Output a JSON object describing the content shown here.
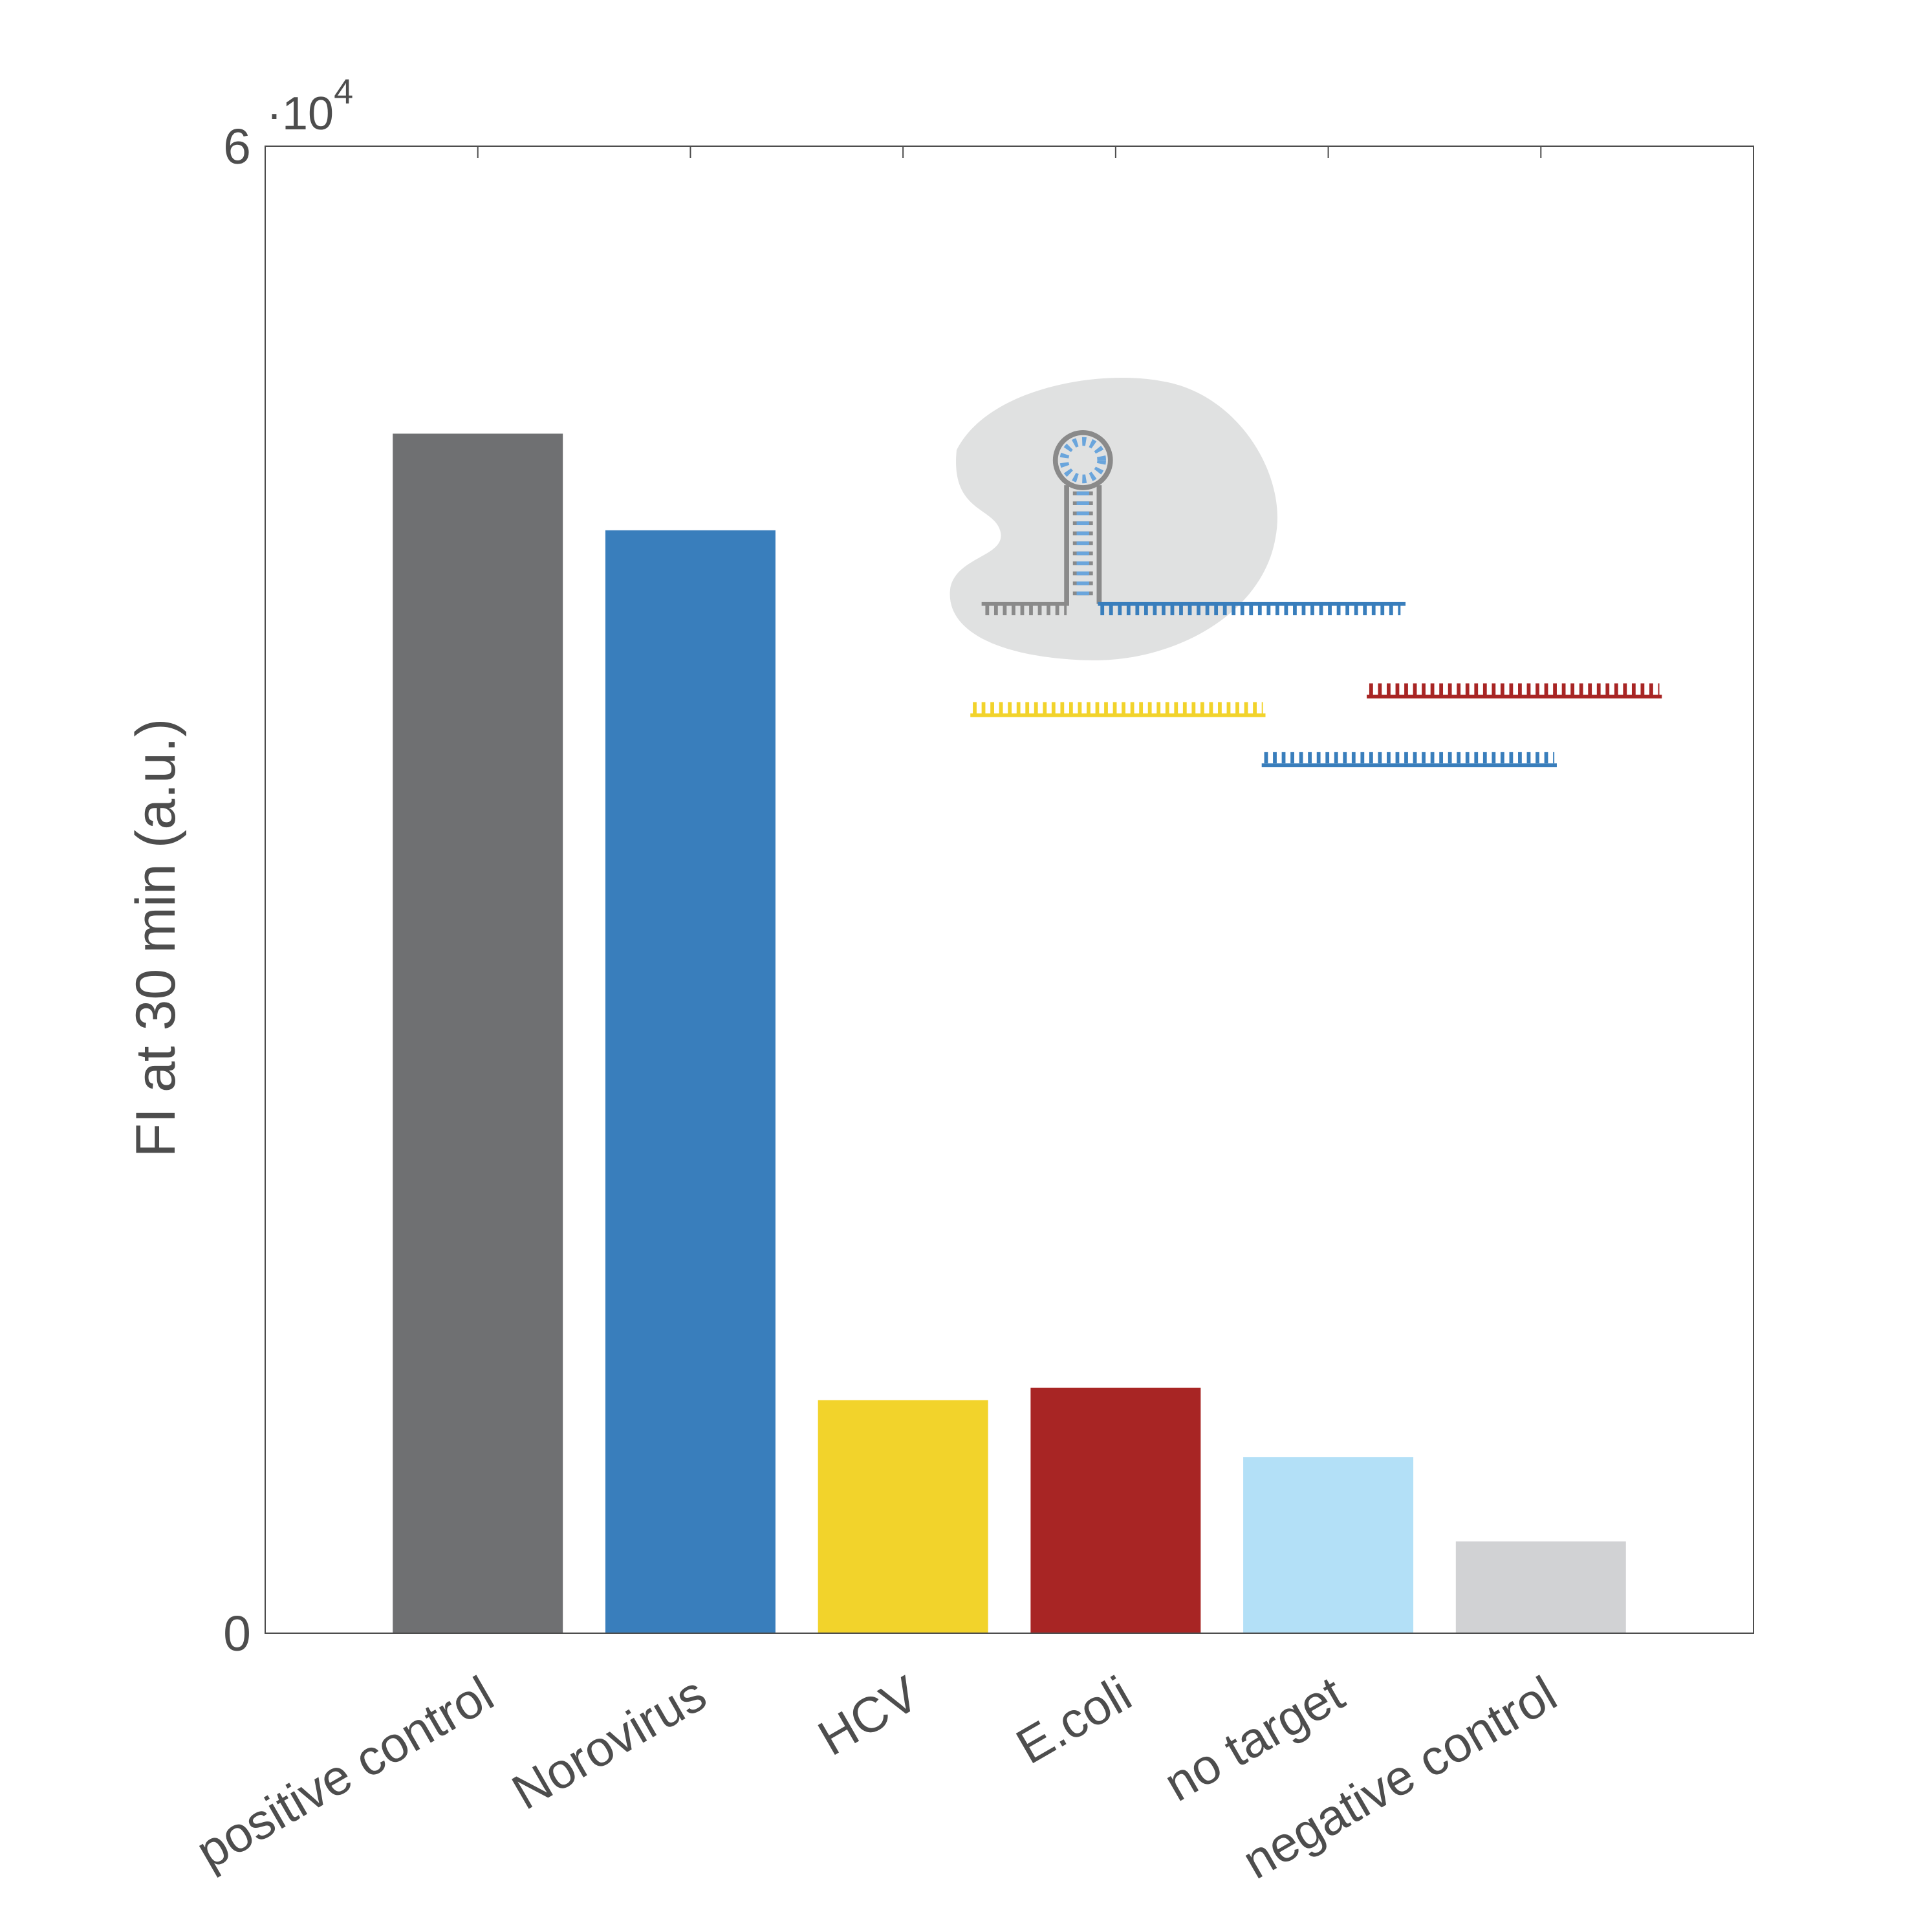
{
  "chart_data": {
    "type": "bar",
    "ylabel": "FI at 30 min (a.u.)",
    "categories": [
      "positive control",
      "Norovirus",
      "HCV",
      "E.coli",
      "no target",
      "negative control"
    ],
    "values": [
      48400,
      44500,
      9400,
      9900,
      7100,
      3700
    ],
    "colors": [
      "#6f7072",
      "#397ebc",
      "#f2d32b",
      "#a82524",
      "#b3e0f7",
      "#d1d2d4"
    ],
    "ylim": [
      0,
      60000
    ],
    "yticks": [
      0,
      {
        "value": 60000,
        "label": "6"
      }
    ],
    "y_multiplier": "·10",
    "y_multiplier_power": "4",
    "grid": false
  }
}
